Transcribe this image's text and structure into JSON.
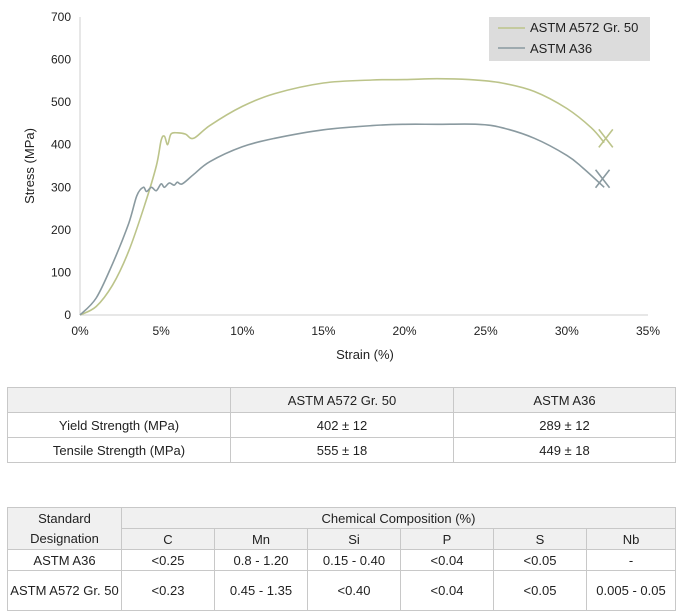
{
  "chart_data": {
    "type": "line",
    "xlabel": "Strain (%)",
    "ylabel": "Stress (MPa)",
    "xlim": [
      0,
      35
    ],
    "ylim": [
      0,
      700
    ],
    "x_ticks": [
      0,
      5,
      10,
      15,
      20,
      25,
      30,
      35
    ],
    "x_tick_labels": [
      "0%",
      "5%",
      "10%",
      "15%",
      "20%",
      "25%",
      "30%",
      "35%"
    ],
    "y_ticks": [
      0,
      100,
      200,
      300,
      400,
      500,
      600,
      700
    ],
    "y_tick_labels": [
      "0",
      "100",
      "200",
      "300",
      "400",
      "500",
      "600",
      "700"
    ],
    "legend_position": "top-right",
    "grid": false,
    "series": [
      {
        "name": "ASTM A572 Gr. 50",
        "color": "#bcc48a",
        "x": [
          0,
          1,
          2,
          3,
          4,
          4.7,
          5,
          5.2,
          5.4,
          5.6,
          6,
          6.5,
          7,
          8,
          10,
          12,
          15,
          18,
          20,
          22,
          24,
          26,
          28,
          30,
          31.5,
          32.3
        ],
        "y": [
          0,
          20,
          70,
          150,
          260,
          350,
          410,
          420,
          400,
          425,
          428,
          425,
          415,
          445,
          490,
          520,
          545,
          552,
          553,
          555,
          553,
          545,
          525,
          485,
          440,
          405
        ]
      },
      {
        "name": "ASTM A36",
        "color": "#8a9aa0",
        "x": [
          0,
          1,
          2,
          3,
          3.5,
          3.9,
          4.1,
          4.4,
          4.7,
          5,
          5.2,
          5.5,
          5.8,
          6,
          6.3,
          7,
          8,
          10,
          12,
          15,
          18,
          20,
          22,
          24.5,
          26,
          28,
          30,
          31,
          32.3
        ],
        "y": [
          0,
          40,
          120,
          215,
          280,
          300,
          290,
          300,
          292,
          308,
          300,
          310,
          305,
          312,
          308,
          330,
          360,
          395,
          415,
          435,
          445,
          448,
          448,
          448,
          440,
          415,
          375,
          345,
          300
        ]
      }
    ],
    "fracture_marks": [
      {
        "series": "ASTM A572 Gr. 50",
        "x": 32.4,
        "y": 415
      },
      {
        "series": "ASTM A36",
        "x": 32.2,
        "y": 320
      }
    ]
  },
  "strength_table": {
    "headers": [
      "",
      "ASTM A572 Gr. 50",
      "ASTM A36"
    ],
    "rows": [
      [
        "Yield Strength (MPa)",
        "402 ± 12",
        "289 ± 12"
      ],
      [
        "Tensile Strength (MPa)",
        "555 ± 18",
        "449 ± 18"
      ]
    ]
  },
  "chem_table": {
    "designation_header": "Standard Designation",
    "group_header": "Chemical Composition (%)",
    "elements": [
      "C",
      "Mn",
      "Si",
      "P",
      "S",
      "Nb"
    ],
    "rows": [
      {
        "designation": "ASTM A36",
        "values": [
          "<0.25",
          "0.8 - 1.20",
          "0.15 - 0.40",
          "<0.04",
          "<0.05",
          "-"
        ]
      },
      {
        "designation": "ASTM A572 Gr. 50",
        "values": [
          "<0.23",
          "0.45 - 1.35",
          "<0.40",
          "<0.04",
          "<0.05",
          "0.005 - 0.05"
        ]
      }
    ]
  }
}
